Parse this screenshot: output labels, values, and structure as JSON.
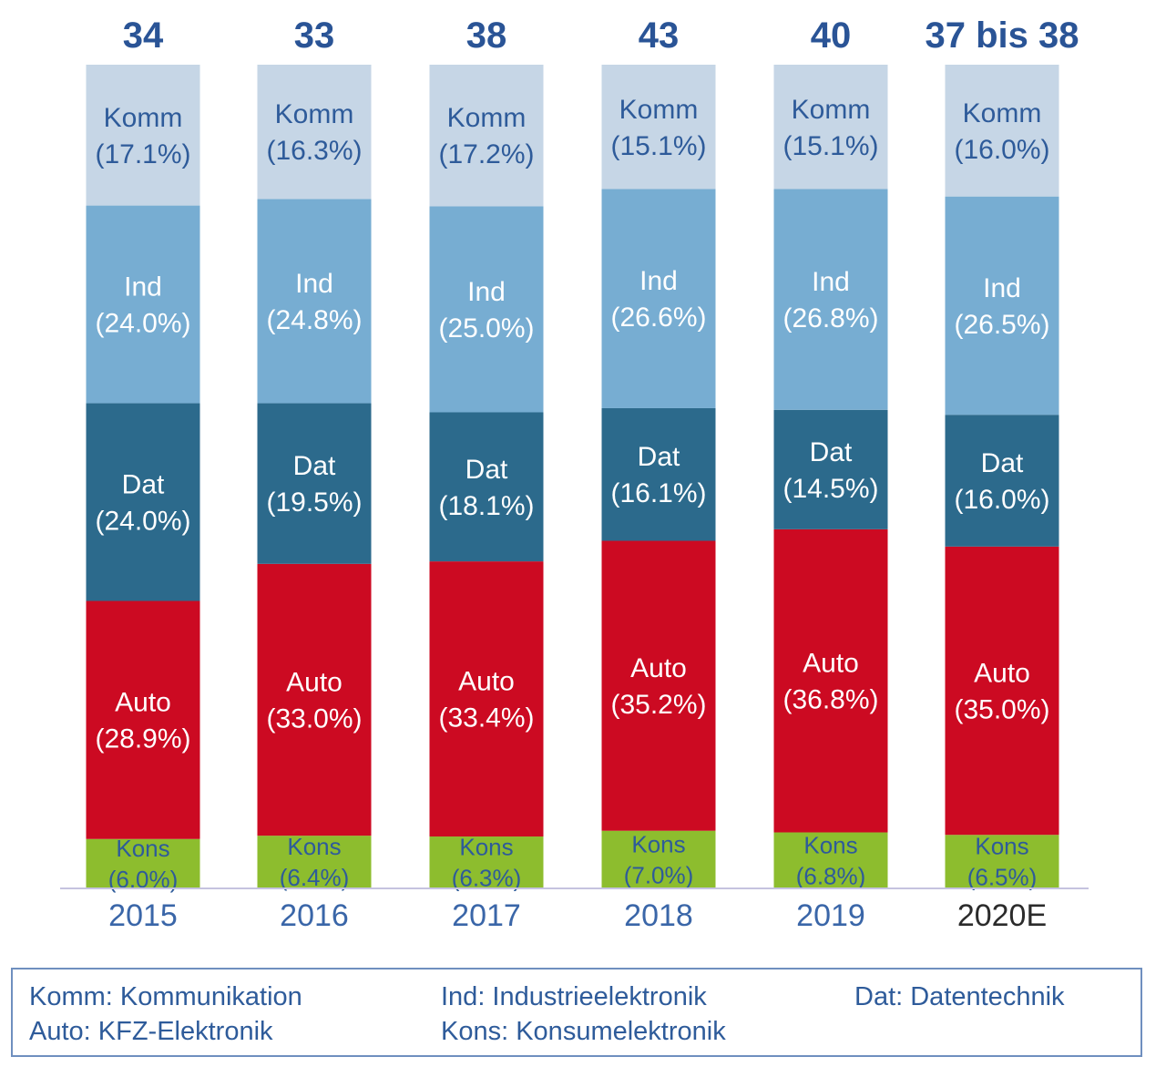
{
  "colors": {
    "Komm": "#c6d6e6",
    "Ind": "#77add2",
    "Dat": "#2c6a8c",
    "Auto": "#cc0a22",
    "Kons": "#8dbd2e",
    "total_text": "#2a5496",
    "year_text": "#3a66a8",
    "year_text_estimate": "#2b2b2b",
    "baseline": "#c5c3df"
  },
  "chart_data": {
    "type": "bar",
    "stacked": true,
    "normalized": true,
    "categories": [
      "2015",
      "2016",
      "2017",
      "2018",
      "2019",
      "2020E"
    ],
    "totals": [
      "34",
      "33",
      "38",
      "43",
      "40",
      "37 bis 38"
    ],
    "stack_order_bottom_to_top": [
      "Kons",
      "Auto",
      "Dat",
      "Ind",
      "Komm"
    ],
    "series": [
      {
        "name": "Komm",
        "values": [
          17.1,
          16.3,
          17.2,
          15.1,
          15.1,
          16.0
        ],
        "labels": [
          "(17.1%)",
          "(16.3%)",
          "(17.2%)",
          "(15.1%)",
          "(15.1%)",
          "(16.0%)"
        ]
      },
      {
        "name": "Ind",
        "values": [
          24.0,
          24.8,
          25.0,
          26.6,
          26.8,
          26.5
        ],
        "labels": [
          "(24.0%)",
          "(24.8%)",
          "(25.0%)",
          "(26.6%)",
          "(26.8%)",
          "(26.5%)"
        ]
      },
      {
        "name": "Dat",
        "values": [
          24.0,
          19.5,
          18.1,
          16.1,
          14.5,
          16.0
        ],
        "labels": [
          "(24.0%)",
          "(19.5%)",
          "(18.1%)",
          "(16.1%)",
          "(14.5%)",
          "(16.0%)"
        ]
      },
      {
        "name": "Auto",
        "values": [
          28.9,
          33.0,
          33.4,
          35.2,
          36.8,
          35.0
        ],
        "labels": [
          "(28.9%)",
          "(33.0%)",
          "(33.4%)",
          "(35.2%)",
          "(36.8%)",
          "(35.0%)"
        ]
      },
      {
        "name": "Kons",
        "values": [
          6.0,
          6.4,
          6.3,
          7.0,
          6.8,
          6.5
        ],
        "labels": [
          "(6.0%)",
          "(6.4%)",
          "(6.3%)",
          "(7.0%)",
          "(6.8%)",
          "(6.5%)"
        ]
      }
    ],
    "title": "",
    "xlabel": "",
    "ylabel": "",
    "grid": false,
    "legend_placement": "bottom"
  },
  "legend": {
    "items": [
      {
        "key": "Komm",
        "text": "Komm: Kommunikation"
      },
      {
        "key": "Ind",
        "text": "Ind: Industrieelektronik"
      },
      {
        "key": "Dat",
        "text": "Dat: Datentechnik"
      },
      {
        "key": "Auto",
        "text": "Auto: KFZ-Elektronik"
      },
      {
        "key": "Kons",
        "text": "Kons: Konsumelektronik"
      }
    ]
  }
}
